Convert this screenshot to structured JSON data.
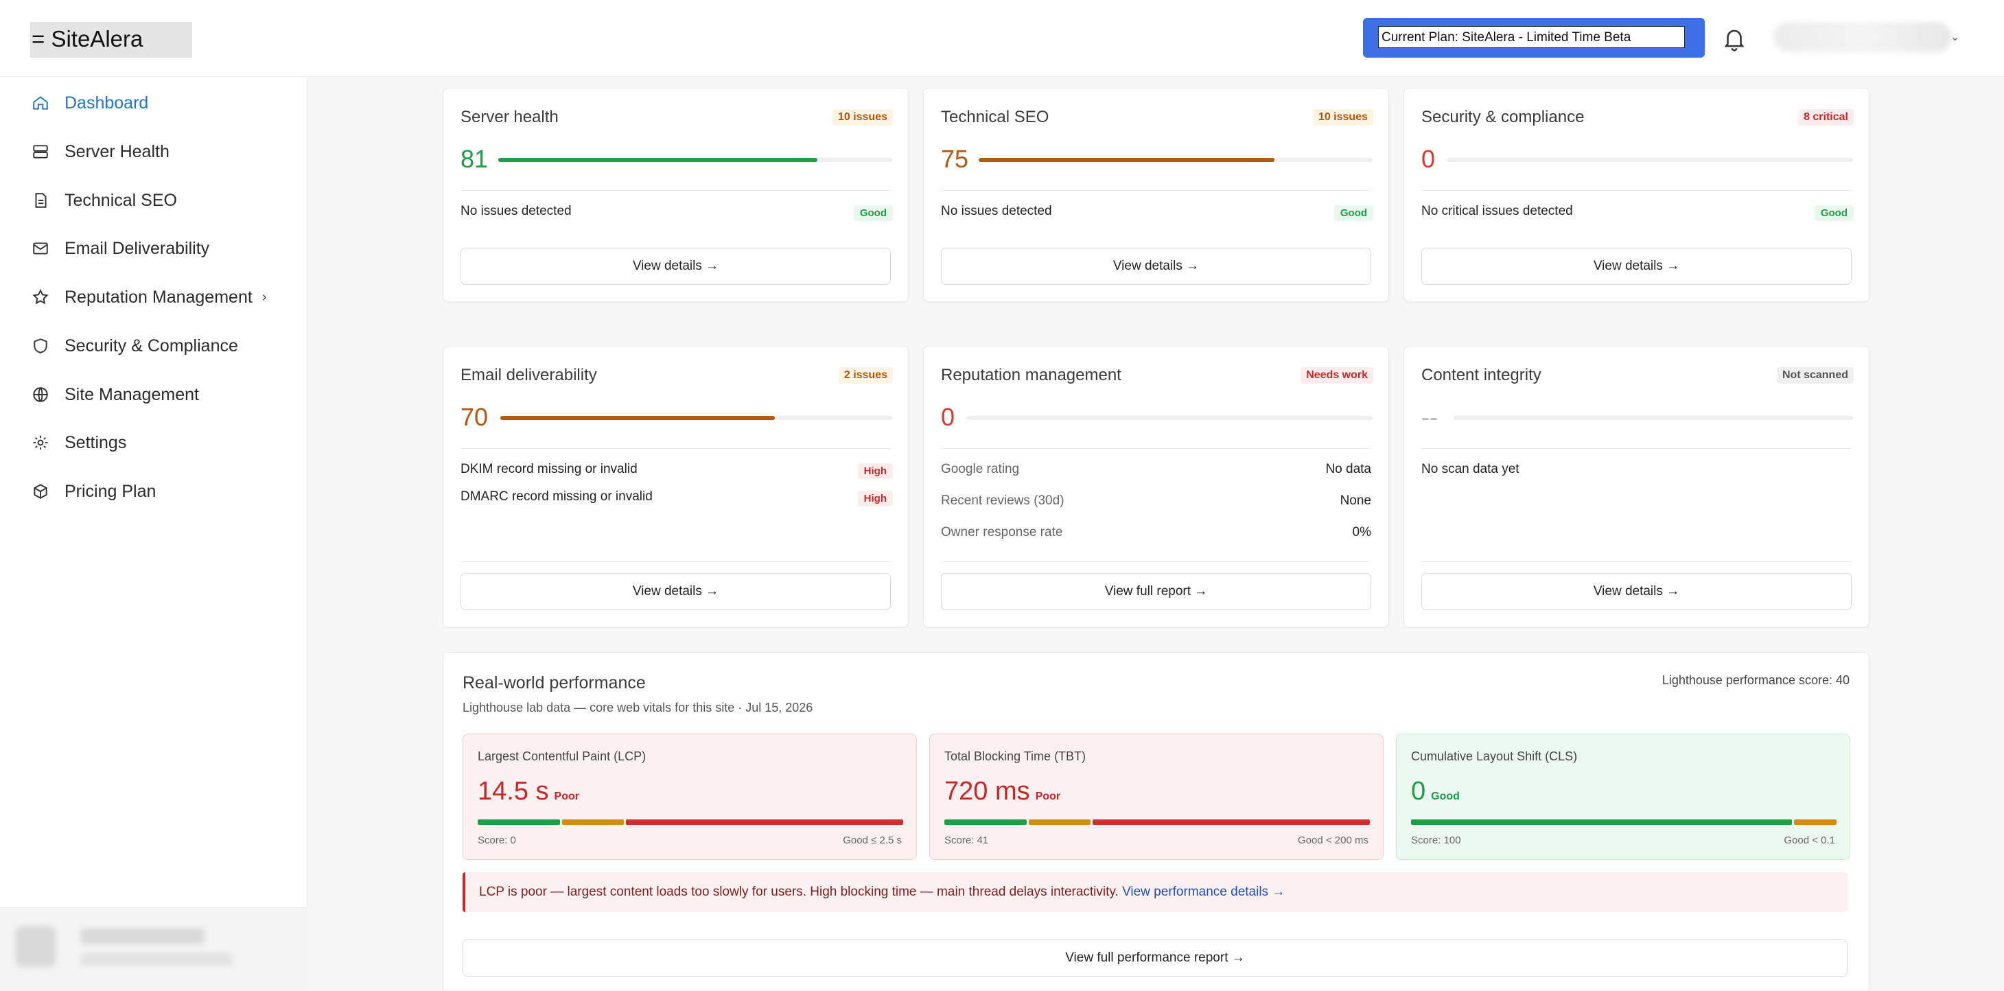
{
  "header": {
    "logo": "= SiteAlera",
    "plan_value": "Current Plan: SiteAlera - Limited Time Beta"
  },
  "sidebar": {
    "items": [
      {
        "label": "Dashboard",
        "icon": "home-icon"
      },
      {
        "label": "Server Health",
        "icon": "server-icon"
      },
      {
        "label": "Technical SEO",
        "icon": "document-icon"
      },
      {
        "label": "Email Deliverability",
        "icon": "mail-icon"
      },
      {
        "label": "Reputation Management",
        "icon": "star-icon"
      },
      {
        "label": "Security & Compliance",
        "icon": "shield-icon"
      },
      {
        "label": "Site Management",
        "icon": "globe-icon"
      },
      {
        "label": "Settings",
        "icon": "gear-icon"
      },
      {
        "label": "Pricing Plan",
        "icon": "box-icon"
      }
    ]
  },
  "cards": {
    "server": {
      "title": "Server health",
      "badge": "10 issues",
      "score": "81",
      "score_fraction": 0.81,
      "row": "No issues detected",
      "status": "Good",
      "button": "View details →"
    },
    "seo": {
      "title": "Technical SEO",
      "badge": "10 issues",
      "score": "75",
      "score_fraction": 0.75,
      "row": "No issues detected",
      "status": "Good",
      "button": "View details →"
    },
    "security": {
      "title": "Security & compliance",
      "badge": "8 critical",
      "score": "0",
      "score_fraction": 0,
      "row": "No critical issues detected",
      "status": "Good",
      "button": "View details →"
    },
    "email": {
      "title": "Email deliverability",
      "badge": "2 issues",
      "score": "70",
      "score_fraction": 0.7,
      "rows": [
        {
          "label": "DKIM record missing or invalid",
          "status": "High"
        },
        {
          "label": "DMARC record missing or invalid",
          "status": "High"
        }
      ],
      "button": "View details →"
    },
    "reputation": {
      "title": "Reputation management",
      "badge": "Needs work",
      "score": "0",
      "score_fraction": 0,
      "rows": [
        {
          "label": "Google rating",
          "value": "No data"
        },
        {
          "label": "Recent reviews (30d)",
          "value": "None"
        },
        {
          "label": "Owner response rate",
          "value": "0%"
        }
      ],
      "button": "View full report →"
    },
    "content": {
      "title": "Content integrity",
      "badge": "Not scanned",
      "score": "--",
      "row": "No scan data yet",
      "button": "View details →"
    }
  },
  "performance": {
    "title": "Real-world performance",
    "subtitle": "Lighthouse lab data — core web vitals for this site · Jul 15, 2026",
    "score_label": "Lighthouse performance score: 40",
    "metrics": [
      {
        "label": "Largest Contentful Paint (LCP)",
        "value": "14.5 s",
        "status": "Poor",
        "score": "Score: 0",
        "threshold": "Good ≤ 2.5 s"
      },
      {
        "label": "Total Blocking Time (TBT)",
        "value": "720 ms",
        "status": "Poor",
        "score": "Score: 41",
        "threshold": "Good < 200 ms"
      },
      {
        "label": "Cumulative Layout Shift (CLS)",
        "value": "0",
        "status": "Good",
        "score": "Score: 100",
        "threshold": "Good < 0.1"
      }
    ],
    "alert_text": "LCP is poor — largest content loads too slowly for users. High blocking time — main thread delays interactivity.",
    "alert_link": "View performance details →",
    "button": "View full performance report →"
  },
  "colors": {
    "accent": "#2177c5",
    "good": "#1e9e47",
    "warn": "#b35a12",
    "poor": "#c62828",
    "plan_bg": "#3f6fe5"
  }
}
